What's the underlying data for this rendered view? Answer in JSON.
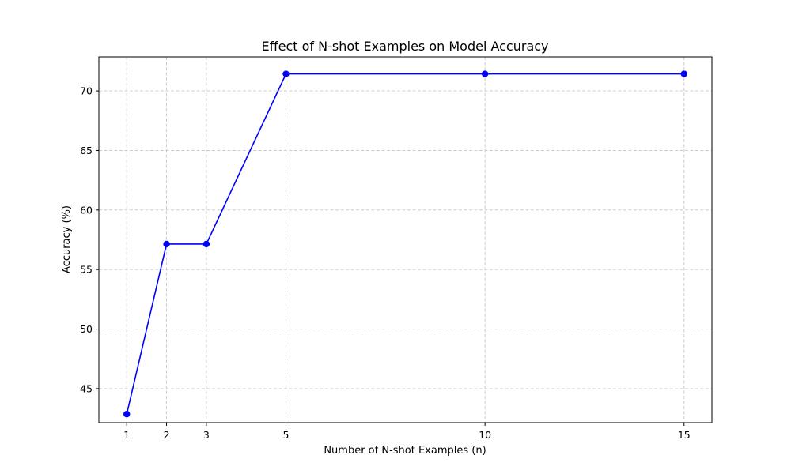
{
  "chart_data": {
    "type": "line",
    "title": "Effect of N-shot Examples on Model Accuracy",
    "xlabel": "Number of N-shot Examples (n)",
    "ylabel": "Accuracy (%)",
    "x": [
      1,
      2,
      3,
      5,
      10,
      15
    ],
    "series": [
      {
        "values": [
          42.86,
          57.14,
          57.14,
          71.43,
          71.43,
          71.43
        ],
        "color": "#0000ff",
        "marker": "circle"
      }
    ],
    "xticks": [
      1,
      2,
      3,
      5,
      10,
      15
    ],
    "yticks": [
      45,
      50,
      55,
      60,
      65,
      70
    ],
    "xlim": [
      0.3,
      15.7
    ],
    "ylim": [
      42.14,
      72.86
    ],
    "grid": true,
    "grid_style": "dashed",
    "grid_color": "#c8c8c8",
    "frame_color": "#000000"
  }
}
